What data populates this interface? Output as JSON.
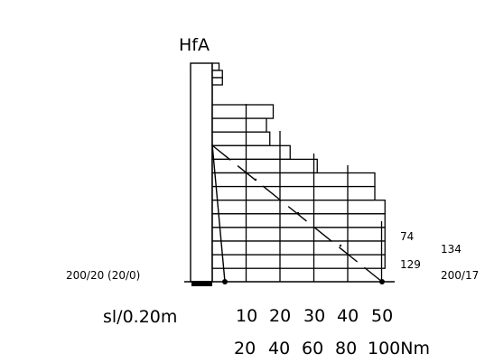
{
  "title": "HfA",
  "left_label": "200/20 (20/0)",
  "sl_label": "sl/0.20m",
  "axis_row1": [
    "10",
    "20",
    "30",
    "40",
    "50"
  ],
  "axis_row2": [
    "20",
    "40",
    "60",
    "80",
    "100Nm"
  ],
  "right_labels": {
    "inner_top": "74",
    "inner_bottom": "129",
    "outer_top": "134",
    "outer_bottom": "200/17"
  },
  "bars": [
    {
      "value": 2
    },
    {
      "value": 3
    },
    {
      "value": 3
    },
    {
      "value": 18
    },
    {
      "value": 16
    },
    {
      "value": 17
    },
    {
      "value": 23
    },
    {
      "value": 31
    },
    {
      "value": 48
    },
    {
      "value": 48
    },
    {
      "value": 51
    },
    {
      "value": 51
    },
    {
      "value": 51
    },
    {
      "value": 51
    },
    {
      "value": 51
    }
  ]
}
